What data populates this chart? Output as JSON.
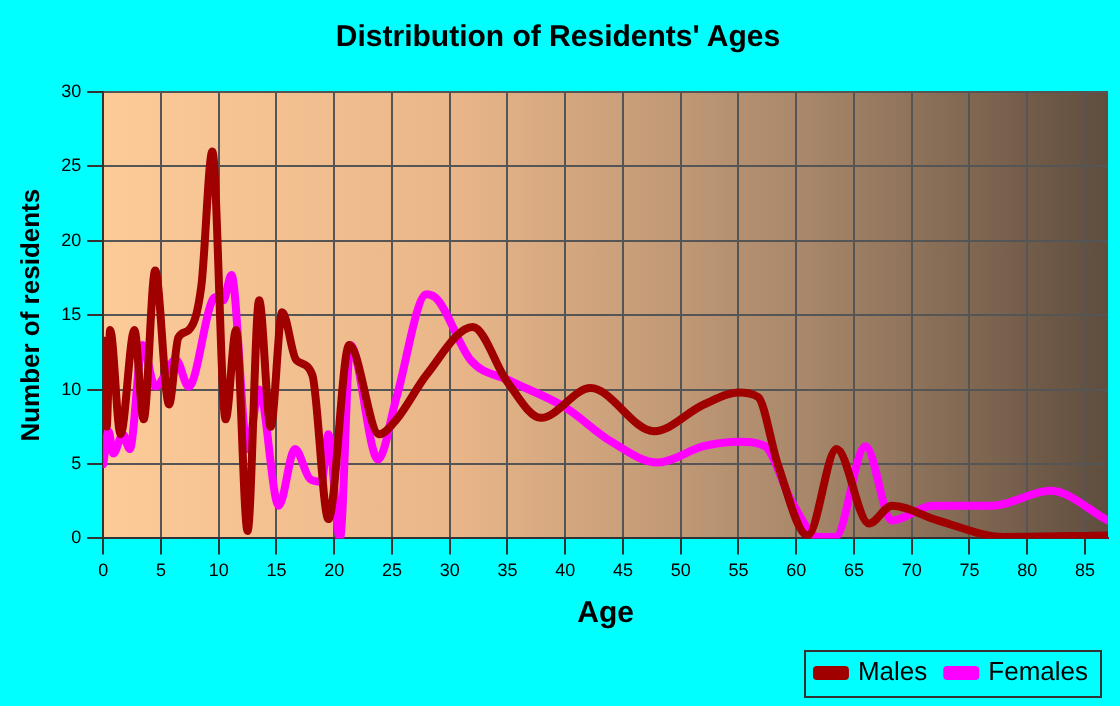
{
  "chart_data": {
    "type": "line",
    "title": "Distribution of Residents' Ages",
    "xlabel": "Age",
    "ylabel": "Number of residents",
    "xlim": [
      0,
      87
    ],
    "xticks": [
      0,
      5,
      10,
      15,
      20,
      25,
      30,
      35,
      40,
      45,
      50,
      55,
      60,
      65,
      70,
      75,
      80,
      85
    ],
    "ylim": [
      0,
      30
    ],
    "yticks": [
      0,
      5,
      10,
      15,
      20,
      25,
      30
    ],
    "grid": true,
    "legend": "bottom right",
    "marker": "none",
    "line_style": "solid",
    "series": [
      {
        "name": "Males",
        "color": "#a00000",
        "x": [
          0,
          0.3,
          0.6,
          1.5,
          2.7,
          3.5,
          4.5,
          5.7,
          6.5,
          7.4,
          8.5,
          9.45,
          10.6,
          11.5,
          12.5,
          13.5,
          14.5,
          15.5,
          16.7,
          18.1,
          19.5,
          21.3,
          23.9,
          25.4,
          28,
          32,
          35,
          37.9,
          42.2,
          47.7,
          52,
          55,
          56.7,
          58.4,
          61,
          63.5,
          66.3,
          68.3,
          72.3,
          78,
          87
        ],
        "values": [
          13.3,
          7.5,
          14,
          7,
          14,
          8,
          18,
          9,
          13.5,
          14,
          17,
          26,
          8,
          14,
          0.5,
          16,
          7.5,
          15.2,
          12,
          11,
          1.3,
          13,
          7,
          8,
          11,
          14.2,
          10.5,
          8.1,
          10.1,
          7.2,
          9,
          9.8,
          9.5,
          5,
          0.2,
          6,
          1,
          2.2,
          1.2,
          0.1,
          0.2
        ]
      },
      {
        "name": "Females",
        "color": "#ff00ff",
        "x": [
          0,
          0.46,
          0.87,
          1.7,
          2.3,
          3.4,
          4.5,
          6.3,
          7.4,
          9.7,
          10.4,
          11.1,
          12.5,
          13.5,
          15.2,
          16.6,
          17.9,
          18.9,
          19.5,
          20.5,
          21.4,
          23.8,
          25.4,
          28,
          29,
          31.8,
          35.2,
          40,
          44,
          48,
          52,
          55,
          57.3,
          59.6,
          61.9,
          63.4,
          66,
          68.3,
          71.8,
          77,
          82,
          87
        ],
        "values": [
          5,
          7.2,
          5.7,
          7,
          6,
          13,
          10.2,
          12,
          10.2,
          16.2,
          16,
          17.7,
          6,
          10,
          2.2,
          6,
          4,
          3.8,
          7,
          0,
          13,
          5.3,
          9.5,
          16.4,
          16,
          12,
          10.6,
          8.8,
          6.5,
          5.1,
          6.2,
          6.5,
          6.2,
          2.5,
          0.1,
          0.1,
          6.2,
          1.2,
          2.2,
          2.2,
          3.2,
          1.2
        ]
      }
    ]
  }
}
